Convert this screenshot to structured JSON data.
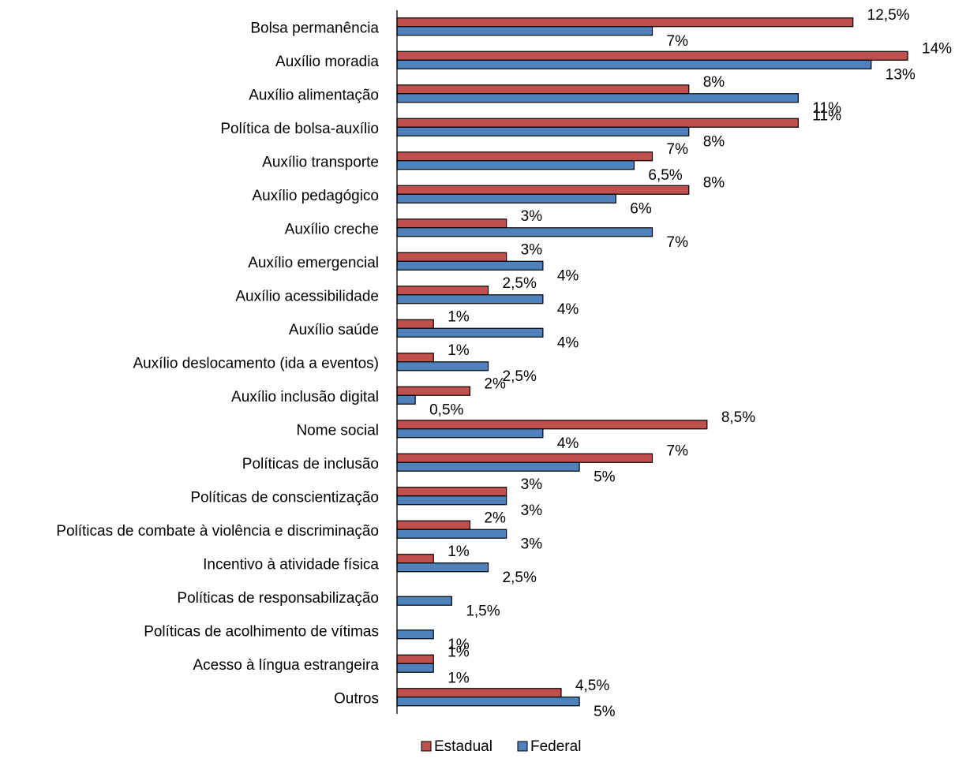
{
  "chart_data": {
    "type": "bar",
    "orientation": "horizontal",
    "title": "",
    "xlabel": "",
    "ylabel": "",
    "xlim": [
      0,
      14
    ],
    "grid": false,
    "legend_position": "bottom",
    "categories": [
      "Bolsa permanência",
      "Auxílio moradia",
      "Auxílio alimentação",
      "Política de bolsa-auxílio",
      "Auxílio transporte",
      "Auxílio pedagógico",
      "Auxílio creche",
      "Auxílio emergencial",
      "Auxílio acessibilidade",
      "Auxílio saúde",
      "Auxílio deslocamento (ida a eventos)",
      "Auxílio inclusão digital",
      "Nome social",
      "Políticas de inclusão",
      "Políticas de conscientização",
      "Políticas de combate à violência e discriminação",
      "Incentivo à atividade física",
      "Políticas de responsabilização",
      "Políticas de acolhimento de vítimas",
      "Acesso à língua estrangeira",
      "Outros"
    ],
    "series": [
      {
        "name": "Estadual",
        "color": "#c0504d",
        "values": [
          12.5,
          14,
          8,
          11,
          7,
          8,
          3,
          3,
          2.5,
          1,
          1,
          2,
          8.5,
          7,
          3,
          2,
          1,
          null,
          null,
          1,
          4.5
        ],
        "labels": [
          "12,5%",
          "14%",
          "8%",
          "11%",
          "7%",
          "8%",
          "3%",
          "3%",
          "2,5%",
          "1%",
          "1%",
          "2%",
          "8,5%",
          "7%",
          "3%",
          "2%",
          "1%",
          "",
          "",
          "1%",
          "4,5%"
        ]
      },
      {
        "name": "Federal",
        "color": "#4f81bd",
        "values": [
          7,
          13,
          11,
          8,
          6.5,
          6,
          7,
          4,
          4,
          4,
          2.5,
          0.5,
          4,
          5,
          3,
          3,
          2.5,
          1.5,
          1,
          1,
          5
        ],
        "labels": [
          "7%",
          "13%",
          "11%",
          "8%",
          "6,5%",
          "6%",
          "7%",
          "4%",
          "4%",
          "4%",
          "2,5%",
          "0,5%",
          "4%",
          "5%",
          "3%",
          "3%",
          "2,5%",
          "1,5%",
          "1%",
          "1%",
          "5%"
        ]
      }
    ]
  }
}
